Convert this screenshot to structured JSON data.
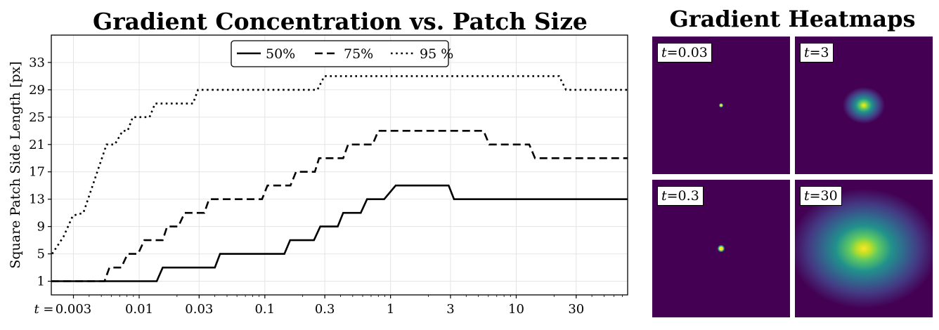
{
  "chart_data": {
    "type": "line",
    "title": "Gradient Concentration vs. Patch Size",
    "xlabel": "",
    "ylabel": "Square Patch Side Length [px]",
    "xscale": "log",
    "xlim": [
      0.002,
      77
    ],
    "ylim": [
      -1,
      37
    ],
    "grid": true,
    "x_tick_prefix": "t =",
    "x_ticks": [
      0.003,
      0.01,
      0.03,
      0.1,
      0.3,
      1,
      3,
      10,
      30
    ],
    "x_tick_labels": [
      "0.003",
      "0.01",
      "0.03",
      "0.1",
      "0.3",
      "1",
      "3",
      "10",
      "30"
    ],
    "y_ticks": [
      1,
      5,
      9,
      13,
      17,
      21,
      25,
      29,
      33
    ],
    "y_tick_labels": [
      "1",
      "5",
      "9",
      "13",
      "17",
      "21",
      "25",
      "29",
      "33"
    ],
    "legend": {
      "placement": "top-center"
    },
    "series": [
      {
        "name": "50%",
        "style": "solid",
        "x": [
          0.002,
          0.0138,
          0.0154,
          0.04,
          0.044,
          0.143,
          0.159,
          0.246,
          0.276,
          0.38,
          0.42,
          0.58,
          0.65,
          0.89,
          1.1,
          2.9,
          3.2,
          77
        ],
        "y": [
          1,
          1,
          3,
          3,
          5,
          5,
          7,
          7,
          9,
          9,
          11,
          11,
          13,
          13,
          15,
          15,
          13,
          13
        ]
      },
      {
        "name": "75%",
        "style": "dashed",
        "x": [
          0.002,
          0.0053,
          0.0058,
          0.0072,
          0.0081,
          0.0098,
          0.011,
          0.0154,
          0.0167,
          0.0205,
          0.023,
          0.033,
          0.036,
          0.095,
          0.105,
          0.16,
          0.177,
          0.25,
          0.27,
          0.42,
          0.46,
          0.72,
          0.8,
          5.5,
          6.1,
          12.7,
          14.1,
          77
        ],
        "y": [
          1,
          1,
          3,
          3,
          5,
          5,
          7,
          7,
          9,
          9,
          11,
          11,
          13,
          13,
          15,
          15,
          17,
          17,
          19,
          19,
          21,
          21,
          23,
          23,
          21,
          21,
          19,
          19
        ]
      },
      {
        "name": "95 %",
        "style": "dotted",
        "x": [
          0.00203,
          0.0025,
          0.00297,
          0.0036,
          0.0055,
          0.0064,
          0.0074,
          0.0081,
          0.0089,
          0.0121,
          0.0134,
          0.0268,
          0.0294,
          0.262,
          0.298,
          21.9,
          24.9,
          77
        ],
        "y": [
          5,
          7.5,
          10.6,
          11,
          21,
          21,
          23,
          23,
          25,
          25,
          27,
          27,
          29,
          29,
          31,
          31,
          29,
          29
        ]
      }
    ]
  },
  "heatmaps": {
    "title": "Gradient Heatmaps",
    "colormap": "viridis",
    "background": "#440154",
    "panels": [
      {
        "var": "t",
        "value": "=0.03"
      },
      {
        "var": "t",
        "value": "=3"
      },
      {
        "var": "t",
        "value": "=0.3"
      },
      {
        "var": "t",
        "value": "=30"
      }
    ]
  }
}
